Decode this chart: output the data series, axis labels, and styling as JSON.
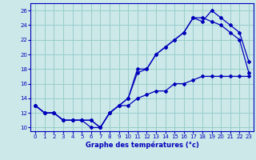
{
  "xlabel": "Graphe des températures (°c)",
  "background_color": "#cce8e8",
  "grid_color": "#99cccc",
  "line_color": "#0000bb",
  "xlim": [
    -0.5,
    23.5
  ],
  "ylim": [
    9.5,
    27
  ],
  "yticks": [
    10,
    12,
    14,
    16,
    18,
    20,
    22,
    24,
    26
  ],
  "xticks": [
    0,
    1,
    2,
    3,
    4,
    5,
    6,
    7,
    8,
    9,
    10,
    11,
    12,
    13,
    14,
    15,
    16,
    17,
    18,
    19,
    20,
    21,
    22,
    23
  ],
  "line1_x": [
    0,
    1,
    2,
    3,
    4,
    5,
    6,
    7,
    8,
    9,
    10,
    11,
    12,
    13,
    14,
    15,
    16,
    17,
    18,
    19,
    20,
    21,
    22,
    23
  ],
  "line1_y": [
    13,
    12,
    12,
    11,
    11,
    11,
    11,
    10,
    12,
    13,
    14,
    18,
    18,
    20,
    21,
    22,
    23,
    25,
    24.5,
    26,
    25,
    24,
    23,
    19
  ],
  "line2_x": [
    0,
    1,
    2,
    3,
    4,
    5,
    6,
    7,
    8,
    9,
    10,
    11,
    12,
    13,
    14,
    15,
    16,
    17,
    18,
    19,
    20,
    21,
    22,
    23
  ],
  "line2_y": [
    13,
    12,
    12,
    11,
    11,
    11,
    11,
    10,
    12,
    13,
    14,
    17.5,
    18,
    20,
    21,
    22,
    23,
    25,
    25,
    24.5,
    24,
    23,
    22,
    17.5
  ],
  "line3_x": [
    0,
    1,
    2,
    3,
    4,
    5,
    6,
    7,
    8,
    9,
    10,
    11,
    12,
    13,
    14,
    15,
    16,
    17,
    18,
    19,
    20,
    21,
    22,
    23
  ],
  "line3_y": [
    13,
    12,
    12,
    11,
    11,
    11,
    10,
    10,
    12,
    13,
    13,
    14,
    14.5,
    15,
    15,
    16,
    16,
    16.5,
    17,
    17,
    17,
    17,
    17,
    17
  ]
}
